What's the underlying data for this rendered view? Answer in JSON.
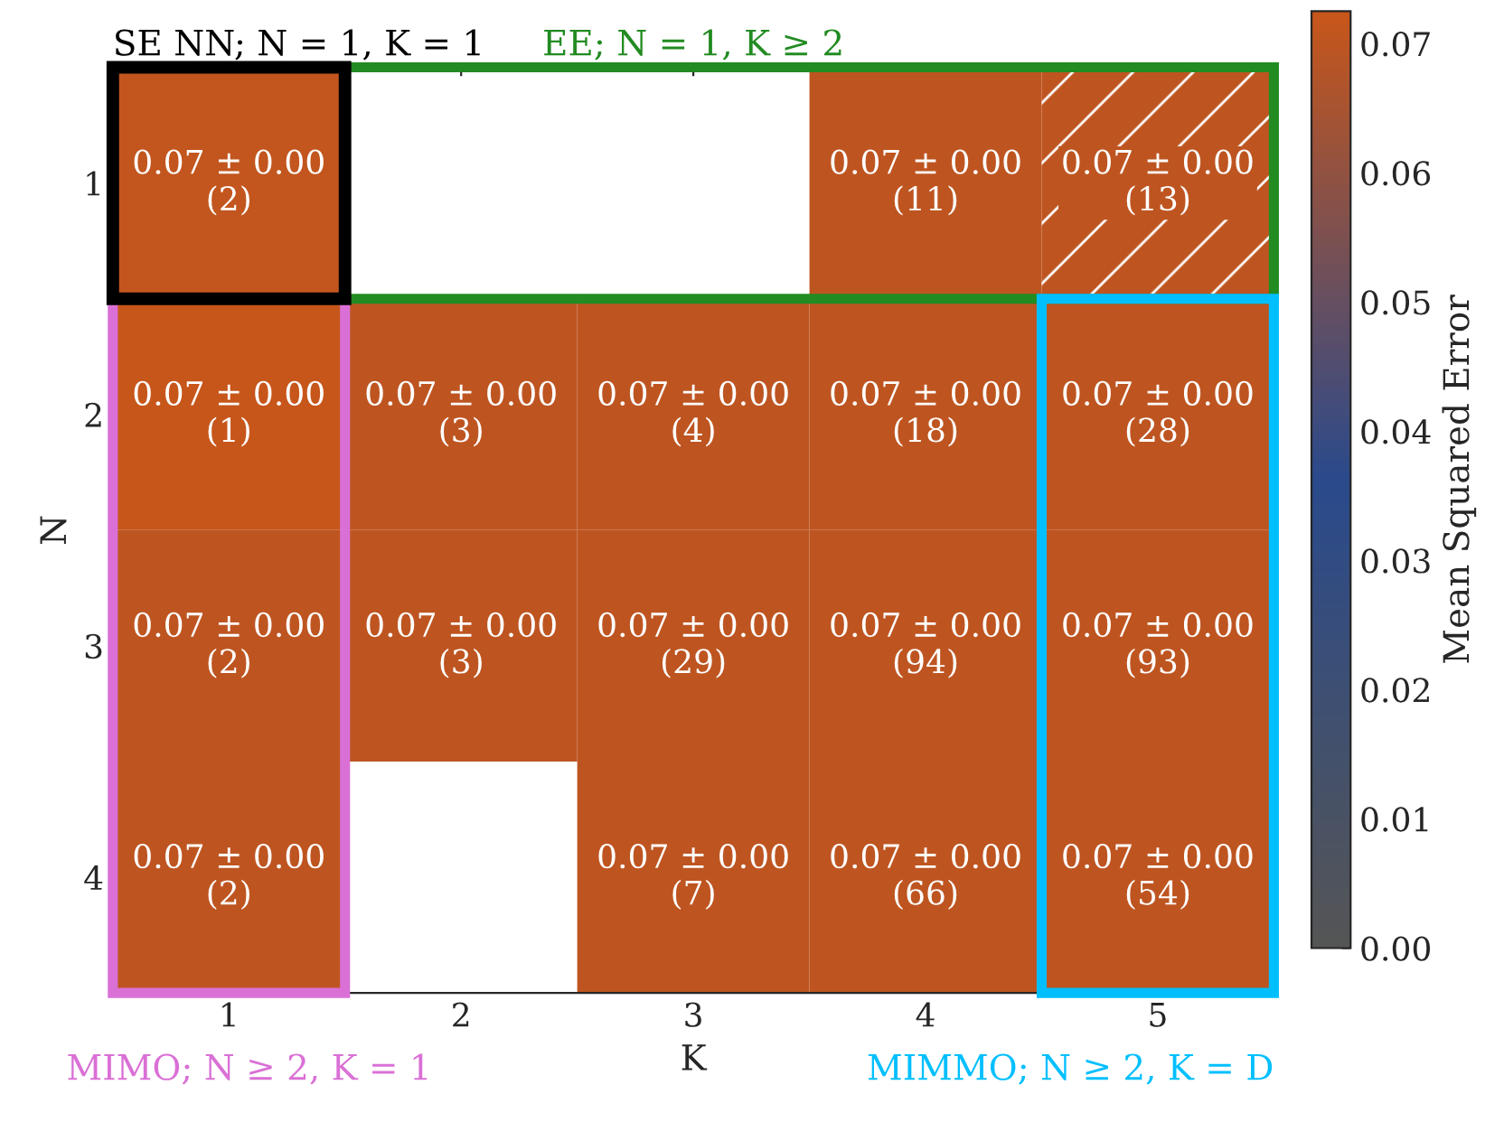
{
  "chart_data": {
    "type": "heatmap",
    "xlabel": "K",
    "ylabel": "N",
    "clabel": "Mean Squared Error",
    "categories": [
      "1",
      "2",
      "3",
      "4",
      "5"
    ],
    "y_categories": [
      "1",
      "2",
      "3",
      "4"
    ],
    "cells": [
      [
        0.071,
        null,
        null,
        0.07,
        0.07
      ],
      [
        0.072,
        0.07,
        0.07,
        0.07,
        0.07
      ],
      [
        0.07,
        0.07,
        0.07,
        0.07,
        0.07
      ],
      [
        0.07,
        null,
        0.07,
        0.07,
        0.07
      ]
    ],
    "cell_labels": [
      [
        "0.07 ± 0.00\n(2)",
        null,
        null,
        "0.07 ± 0.00\n(11)",
        "0.07 ± 0.00\n(13)"
      ],
      [
        "0.07 ± 0.00\n(1)",
        "0.07 ± 0.00\n(3)",
        "0.07 ± 0.00\n(4)",
        "0.07 ± 0.00\n(18)",
        "0.07 ± 0.00\n(28)"
      ],
      [
        "0.07 ± 0.00\n(2)",
        "0.07 ± 0.00\n(3)",
        "0.07 ± 0.00\n(29)",
        "0.07 ± 0.00\n(94)",
        "0.07 ± 0.00\n(93)"
      ],
      [
        "0.07 ± 0.00\n(2)",
        null,
        "0.07 ± 0.00\n(7)",
        "0.07 ± 0.00\n(66)",
        "0.07 ± 0.00\n(54)"
      ]
    ],
    "clim": [
      0,
      0.0725
    ],
    "cticks": [
      {
        "value": 0,
        "label": "0.00"
      },
      {
        "value": 0.01,
        "label": "0.01"
      },
      {
        "value": 0.02,
        "label": "0.02"
      },
      {
        "value": 0.03,
        "label": "0.03"
      },
      {
        "value": 0.04,
        "label": "0.04"
      },
      {
        "value": 0.05,
        "label": "0.05"
      },
      {
        "value": 0.06,
        "label": "0.06"
      },
      {
        "value": 0.07,
        "label": "0.07"
      }
    ],
    "annotations": [
      "SE NN; N = 1, K = 1",
      "EE; N = 1, K ≥ 2",
      "MIMO; N ≥ 2, K = 1",
      "MIMMO; N ≥ 2, K = D"
    ]
  }
}
